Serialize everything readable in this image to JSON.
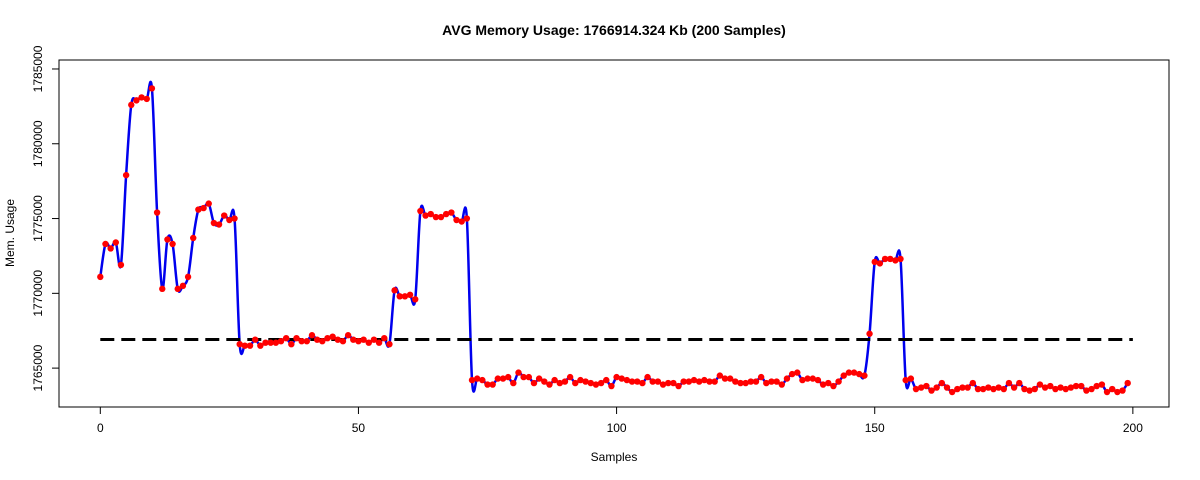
{
  "chart_data": {
    "type": "line",
    "title": "AVG Memory Usage: 1766914.324 Kb (200 Samples)",
    "xlabel": "Samples",
    "ylabel": "Mem. Usage",
    "xlim": [
      -8,
      207
    ],
    "ylim": [
      1762400,
      1785600
    ],
    "x_ticks": [
      0,
      50,
      100,
      150,
      200
    ],
    "y_ticks": [
      1765000,
      1770000,
      1775000,
      1780000,
      1785000
    ],
    "average": 1766914.324,
    "grid": false,
    "legend": "none",
    "series": [
      {
        "x_start": 0,
        "values": [
          1771100,
          1773300,
          1773000,
          1773400,
          1771900,
          1777900,
          1782600,
          1782900,
          1783100,
          1783000,
          1783700,
          1775400,
          1770300,
          1773600,
          1773300,
          1770300,
          1770500,
          1771100,
          1773700,
          1775600,
          1775700,
          1776000,
          1774700,
          1774600,
          1775200,
          1774900,
          1775000,
          1766600,
          1766500,
          1766500,
          1766900,
          1766500,
          1766700,
          1766700,
          1766700,
          1766800,
          1767000,
          1766600,
          1767000,
          1766800,
          1766800,
          1767200,
          1766900,
          1766800,
          1767000,
          1767100,
          1766900,
          1766800,
          1767200,
          1766900,
          1766800,
          1766900,
          1766700,
          1766900,
          1766700,
          1767000,
          1766600,
          1770200,
          1769800,
          1769800,
          1769900,
          1769600,
          1775500,
          1775200,
          1775300,
          1775100,
          1775100,
          1775300,
          1775400,
          1774900,
          1774800,
          1775000,
          1764200,
          1764300,
          1764200,
          1763900,
          1763900,
          1764300,
          1764300,
          1764400,
          1764000,
          1764700,
          1764400,
          1764400,
          1764000,
          1764300,
          1764100,
          1763900,
          1764200,
          1764000,
          1764100,
          1764400,
          1764000,
          1764200,
          1764100,
          1764000,
          1763900,
          1764000,
          1764200,
          1763800,
          1764400,
          1764300,
          1764200,
          1764100,
          1764100,
          1764000,
          1764400,
          1764100,
          1764100,
          1763900,
          1764000,
          1764000,
          1763800,
          1764100,
          1764100,
          1764200,
          1764100,
          1764200,
          1764100,
          1764100,
          1764500,
          1764300,
          1764300,
          1764100,
          1764000,
          1764000,
          1764100,
          1764100,
          1764400,
          1764000,
          1764100,
          1764100,
          1763900,
          1764300,
          1764600,
          1764700,
          1764200,
          1764300,
          1764300,
          1764200,
          1763900,
          1764000,
          1763800,
          1764100,
          1764500,
          1764700,
          1764700,
          1764600,
          1764500,
          1767300,
          1772100,
          1772000,
          1772300,
          1772300,
          1772200,
          1772300,
          1764200,
          1764300,
          1763600,
          1763700,
          1763800,
          1763500,
          1763700,
          1764000,
          1763700,
          1763400,
          1763600,
          1763700,
          1763700,
          1764000,
          1763600,
          1763600,
          1763700,
          1763600,
          1763700,
          1763600,
          1764000,
          1763700,
          1764000,
          1763600,
          1763500,
          1763600,
          1763900,
          1763700,
          1763800,
          1763600,
          1763700,
          1763600,
          1763700,
          1763800,
          1763800,
          1763500,
          1763600,
          1763800,
          1763900,
          1763400,
          1763600,
          1763400,
          1763500,
          1764000
        ]
      }
    ],
    "colors": {
      "line": "#0000ee",
      "points": "#ff0000",
      "average_line": "#000000",
      "axis": "#000000"
    }
  }
}
